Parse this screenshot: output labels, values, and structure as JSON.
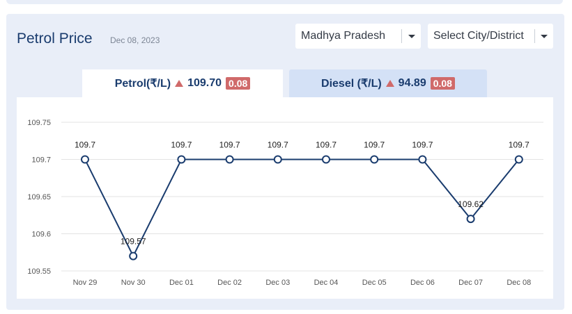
{
  "header": {
    "title": "Petrol Price",
    "date": "Dec 08, 2023"
  },
  "filters": {
    "state": "Madhya Pradesh",
    "city_placeholder": "Select City/District"
  },
  "tabs": {
    "petrol": {
      "label": "Petrol(₹/L)",
      "price": "109.70",
      "change": "0.08"
    },
    "diesel": {
      "label": "Diesel (₹/L)",
      "price": "94.89",
      "change": "0.08"
    }
  },
  "colors": {
    "line": "#1a3c6e",
    "up": "#d06a6a",
    "grid": "#e3e3e3",
    "axis_text": "#555555"
  },
  "chart_data": {
    "type": "line",
    "title": "",
    "xlabel": "",
    "ylabel": "",
    "categories": [
      "Nov 29",
      "Nov 30",
      "Dec 01",
      "Dec 02",
      "Dec 03",
      "Dec 04",
      "Dec 05",
      "Dec 06",
      "Dec 07",
      "Dec 08"
    ],
    "values": [
      109.7,
      109.57,
      109.7,
      109.7,
      109.7,
      109.7,
      109.7,
      109.7,
      109.62,
      109.7
    ],
    "data_labels": [
      "109.7",
      "109.57",
      "109.7",
      "109.7",
      "109.7",
      "109.7",
      "109.7",
      "109.7",
      "109.62",
      "109.7"
    ],
    "yticks": [
      109.55,
      109.6,
      109.65,
      109.7,
      109.75
    ],
    "ytick_labels": [
      "109.55",
      "109.6",
      "109.65",
      "109.7",
      "109.75"
    ],
    "ylim": [
      109.55,
      109.75
    ],
    "grid": true,
    "legend": "none"
  }
}
